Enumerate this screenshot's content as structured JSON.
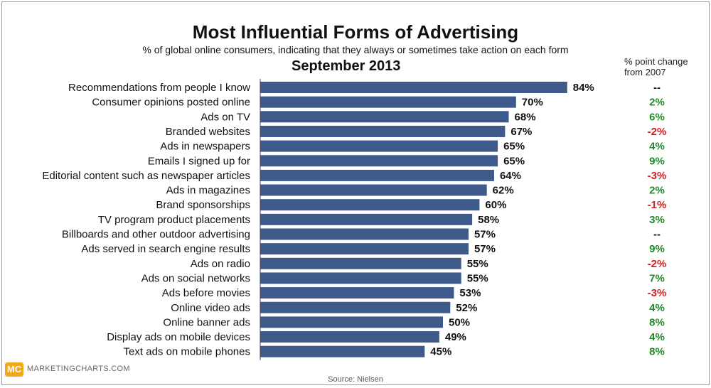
{
  "chart_data": {
    "type": "bar",
    "orientation": "horizontal",
    "title": "Most Influential Forms of Advertising",
    "subtitle": "% of global online consumers, indicating that they always or sometimes take action on each form",
    "date_label": "September 2013",
    "change_header": "% point change from 2007",
    "categories": [
      "Recommendations from people I know",
      "Consumer opinions posted online",
      "Ads on TV",
      "Branded websites",
      "Ads in newspapers",
      "Emails I signed up for",
      "Editorial content such as newspaper articles",
      "Ads in magazines",
      "Brand sponsorships",
      "TV program product placements",
      "Billboards and other outdoor advertising",
      "Ads served in search engine results",
      "Ads on radio",
      "Ads on social networks",
      "Ads before movies",
      "Online video ads",
      "Online banner ads",
      "Display ads on mobile devices",
      "Text ads on mobile phones"
    ],
    "values": [
      84,
      70,
      68,
      67,
      65,
      65,
      64,
      62,
      60,
      58,
      57,
      57,
      55,
      55,
      53,
      52,
      50,
      49,
      45
    ],
    "value_labels": [
      "84%",
      "70%",
      "68%",
      "67%",
      "65%",
      "65%",
      "64%",
      "62%",
      "60%",
      "58%",
      "57%",
      "57%",
      "55%",
      "55%",
      "53%",
      "52%",
      "50%",
      "49%",
      "45%"
    ],
    "changes": [
      "--",
      "2%",
      "6%",
      "-2%",
      "4%",
      "9%",
      "-3%",
      "2%",
      "-1%",
      "3%",
      "--",
      "9%",
      "-2%",
      "7%",
      "-3%",
      "4%",
      "8%",
      "4%",
      "8%"
    ],
    "xlim": [
      0,
      100
    ],
    "grid": false,
    "colors": {
      "bar": "#3d5a8a",
      "positive": "#1f8a2a",
      "negative": "#d01f1f",
      "neutral": "#111111"
    }
  },
  "footer": {
    "logo_text": "MC",
    "brand": "MARKETINGCHARTS.COM",
    "source": "Source: Nielsen"
  }
}
